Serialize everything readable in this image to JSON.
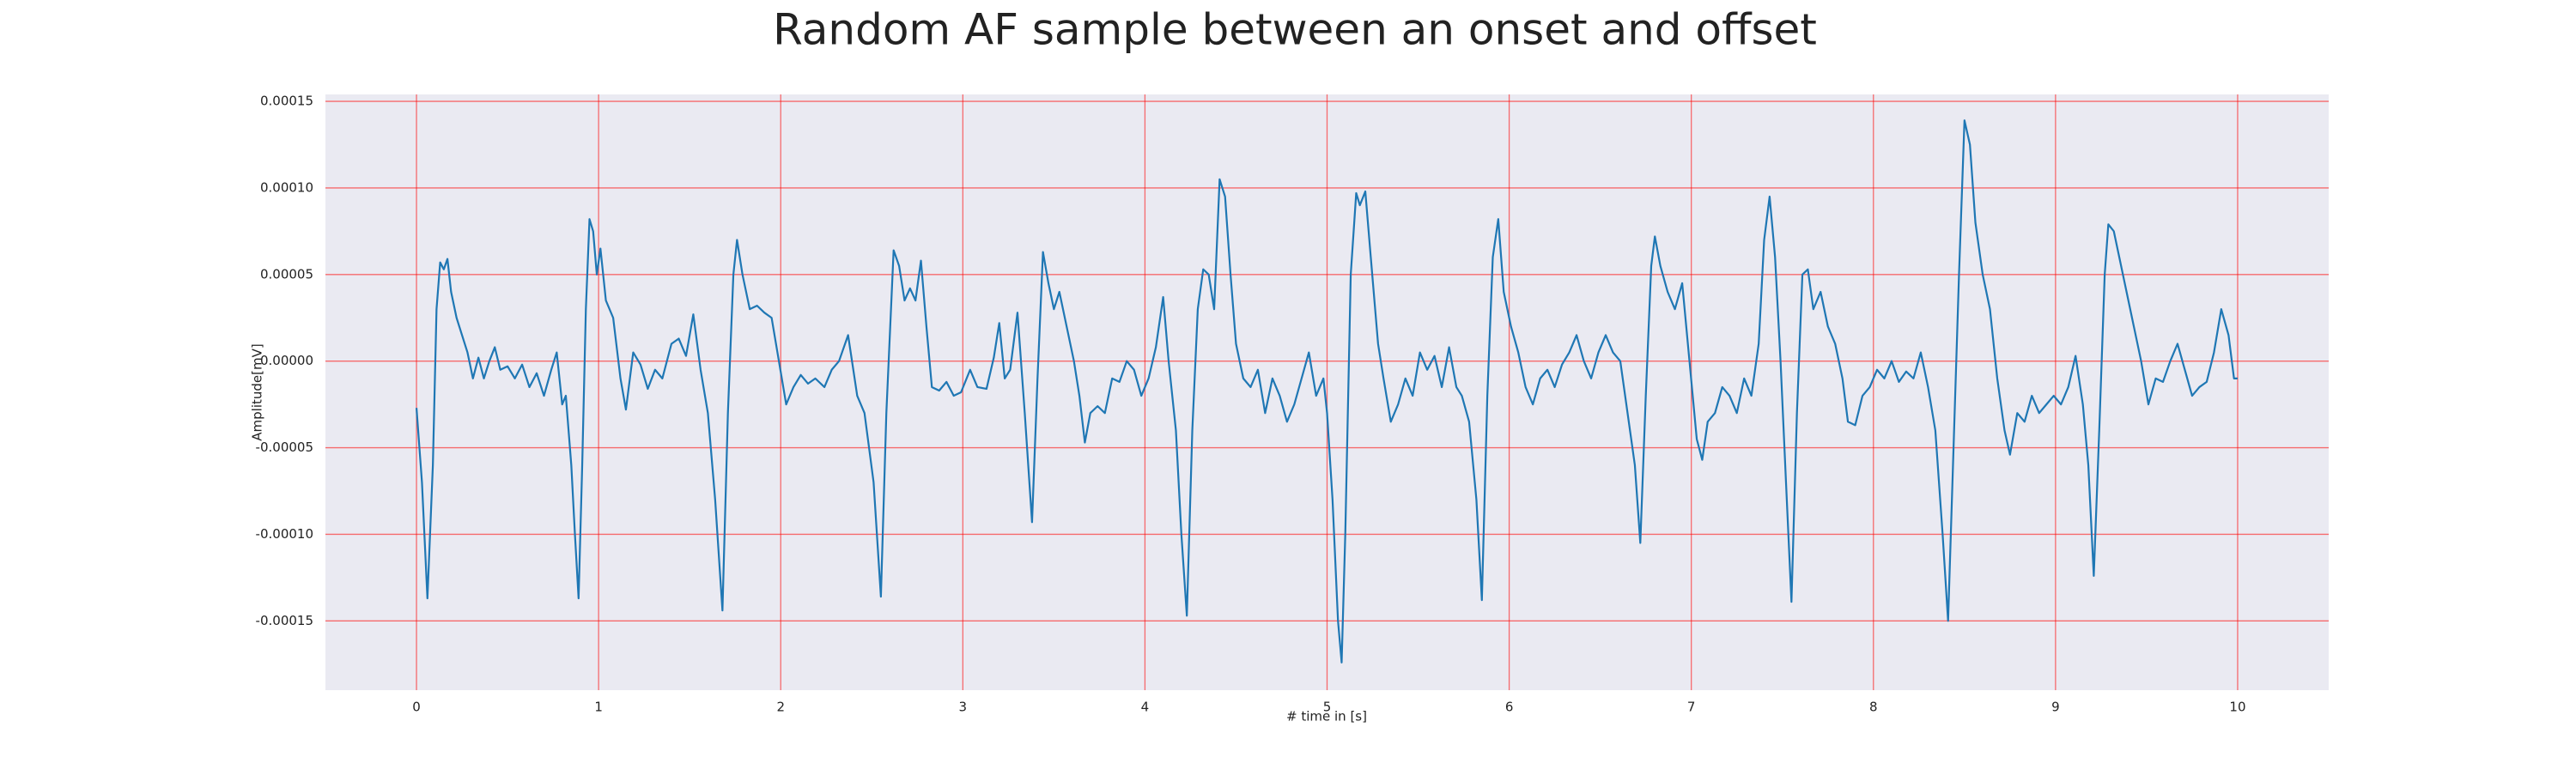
{
  "chart_data": {
    "type": "line",
    "title": "Random AF sample between an onset and offset",
    "xlabel": "# time in [s]",
    "ylabel": "Amplitude[mV]",
    "color": "#1f77b4",
    "grid": true,
    "xlim": [
      -0.5,
      10.5
    ],
    "xticks": [
      0,
      1,
      2,
      3,
      4,
      5,
      6,
      7,
      8,
      9,
      10
    ],
    "ylim": [
      -0.00019,
      0.000154
    ],
    "yticks": [
      {
        "value": -0.00015,
        "label": "-0.00015"
      },
      {
        "value": -0.0001,
        "label": "-0.00010"
      },
      {
        "value": -5e-05,
        "label": "-0.00005"
      },
      {
        "value": 0,
        "label": "0.00000"
      },
      {
        "value": 5e-05,
        "label": "0.00005"
      },
      {
        "value": 0.0001,
        "label": "0.00010"
      },
      {
        "value": 0.00015,
        "label": "0.00015"
      }
    ],
    "x": [
      0.0,
      0.03,
      0.06,
      0.09,
      0.11,
      0.13,
      0.15,
      0.17,
      0.19,
      0.22,
      0.25,
      0.28,
      0.31,
      0.34,
      0.37,
      0.4,
      0.43,
      0.46,
      0.5,
      0.54,
      0.58,
      0.62,
      0.66,
      0.7,
      0.74,
      0.77,
      0.8,
      0.82,
      0.85,
      0.87,
      0.89,
      0.91,
      0.93,
      0.95,
      0.97,
      0.99,
      1.01,
      1.04,
      1.08,
      1.12,
      1.15,
      1.19,
      1.23,
      1.27,
      1.31,
      1.35,
      1.4,
      1.44,
      1.48,
      1.52,
      1.56,
      1.6,
      1.64,
      1.68,
      1.71,
      1.74,
      1.76,
      1.79,
      1.83,
      1.87,
      1.91,
      1.95,
      1.99,
      2.03,
      2.07,
      2.11,
      2.15,
      2.19,
      2.24,
      2.28,
      2.32,
      2.37,
      2.42,
      2.46,
      2.51,
      2.55,
      2.58,
      2.62,
      2.65,
      2.68,
      2.71,
      2.74,
      2.77,
      2.8,
      2.83,
      2.87,
      2.91,
      2.95,
      2.99,
      3.04,
      3.08,
      3.13,
      3.17,
      3.2,
      3.23,
      3.26,
      3.3,
      3.34,
      3.38,
      3.41,
      3.44,
      3.47,
      3.5,
      3.53,
      3.57,
      3.61,
      3.64,
      3.67,
      3.7,
      3.74,
      3.78,
      3.82,
      3.86,
      3.9,
      3.94,
      3.98,
      4.02,
      4.06,
      4.1,
      4.13,
      4.17,
      4.2,
      4.23,
      4.26,
      4.29,
      4.32,
      4.35,
      4.38,
      4.41,
      4.44,
      4.47,
      4.5,
      4.54,
      4.58,
      4.62,
      4.66,
      4.7,
      4.74,
      4.78,
      4.82,
      4.86,
      4.9,
      4.94,
      4.98,
      5.0,
      5.03,
      5.06,
      5.08,
      5.1,
      5.13,
      5.16,
      5.18,
      5.21,
      5.24,
      5.28,
      5.31,
      5.35,
      5.39,
      5.43,
      5.47,
      5.51,
      5.55,
      5.59,
      5.63,
      5.67,
      5.71,
      5.74,
      5.78,
      5.82,
      5.85,
      5.88,
      5.91,
      5.94,
      5.97,
      6.01,
      6.05,
      6.09,
      6.13,
      6.17,
      6.21,
      6.25,
      6.29,
      6.33,
      6.37,
      6.41,
      6.45,
      6.49,
      6.53,
      6.57,
      6.61,
      6.65,
      6.69,
      6.72,
      6.75,
      6.78,
      6.8,
      6.83,
      6.87,
      6.91,
      6.95,
      6.99,
      7.03,
      7.06,
      7.09,
      7.13,
      7.17,
      7.21,
      7.25,
      7.29,
      7.33,
      7.37,
      7.4,
      7.43,
      7.46,
      7.49,
      7.52,
      7.55,
      7.58,
      7.61,
      7.64,
      7.67,
      7.71,
      7.75,
      7.79,
      7.83,
      7.86,
      7.9,
      7.94,
      7.98,
      8.02,
      8.06,
      8.1,
      8.14,
      8.18,
      8.22,
      8.26,
      8.3,
      8.34,
      8.38,
      8.41,
      8.44,
      8.47,
      8.5,
      8.53,
      8.56,
      8.6,
      8.64,
      8.68,
      8.72,
      8.75,
      8.79,
      8.83,
      8.87,
      8.91,
      8.95,
      8.99,
      9.03,
      9.07,
      9.11,
      9.15,
      9.18,
      9.21,
      9.24,
      9.27,
      9.29,
      9.32,
      9.35,
      9.39,
      9.43,
      9.47,
      9.51,
      9.55,
      9.59,
      9.63,
      9.67,
      9.71,
      9.75,
      9.79,
      9.83,
      9.87,
      9.91,
      9.95,
      9.98,
      10.0
    ],
    "values": [
      -2.7e-05,
      -7e-05,
      -0.000137,
      -6e-05,
      3e-05,
      5.7e-05,
      5.3e-05,
      5.9e-05,
      4e-05,
      2.5e-05,
      1.5e-05,
      5e-06,
      -1e-05,
      2e-06,
      -1e-05,
      0,
      8e-06,
      -5e-06,
      -3e-06,
      -1e-05,
      -2e-06,
      -1.5e-05,
      -7e-06,
      -2e-05,
      -5e-06,
      5e-06,
      -2.5e-05,
      -2e-05,
      -6e-05,
      -0.0001,
      -0.000137,
      -6e-05,
      3e-05,
      8.2e-05,
      7.5e-05,
      5e-05,
      6.5e-05,
      3.5e-05,
      2.5e-05,
      -1e-05,
      -2.8e-05,
      5e-06,
      -2e-06,
      -1.6e-05,
      -5e-06,
      -1e-05,
      1e-05,
      1.3e-05,
      3e-06,
      2.7e-05,
      -5e-06,
      -3e-05,
      -8e-05,
      -0.000144,
      -3e-05,
      5e-05,
      7e-05,
      5e-05,
      3e-05,
      3.2e-05,
      2.8e-05,
      2.5e-05,
      0,
      -2.5e-05,
      -1.5e-05,
      -8e-06,
      -1.3e-05,
      -1e-05,
      -1.5e-05,
      -5e-06,
      0,
      1.5e-05,
      -2e-05,
      -3e-05,
      -7e-05,
      -0.000136,
      -3e-05,
      6.4e-05,
      5.5e-05,
      3.5e-05,
      4.2e-05,
      3.5e-05,
      5.8e-05,
      2e-05,
      -1.5e-05,
      -1.7e-05,
      -1.2e-05,
      -2e-05,
      -1.8e-05,
      -5e-06,
      -1.5e-05,
      -1.6e-05,
      2e-06,
      2.2e-05,
      -1e-05,
      -5e-06,
      2.8e-05,
      -3e-05,
      -9.3e-05,
      -1e-05,
      6.3e-05,
      4.5e-05,
      3e-05,
      4e-05,
      2e-05,
      0,
      -2e-05,
      -4.7e-05,
      -3e-05,
      -2.6e-05,
      -3e-05,
      -1e-05,
      -1.2e-05,
      0,
      -5e-06,
      -2e-05,
      -1e-05,
      8e-06,
      3.7e-05,
      0,
      -4e-05,
      -0.0001,
      -0.000147,
      -4e-05,
      3e-05,
      5.3e-05,
      5e-05,
      3e-05,
      0.000105,
      9.5e-05,
      5e-05,
      1e-05,
      -1e-05,
      -1.5e-05,
      -5e-06,
      -3e-05,
      -1e-05,
      -2e-05,
      -3.5e-05,
      -2.5e-05,
      -1e-05,
      5e-06,
      -2e-05,
      -1e-05,
      -3e-05,
      -8e-05,
      -0.00015,
      -0.000174,
      -0.0001,
      5e-05,
      9.7e-05,
      9e-05,
      9.8e-05,
      6e-05,
      1e-05,
      -1e-05,
      -3.5e-05,
      -2.5e-05,
      -1e-05,
      -2e-05,
      5e-06,
      -5e-06,
      3e-06,
      -1.5e-05,
      8e-06,
      -1.5e-05,
      -2e-05,
      -3.5e-05,
      -8e-05,
      -0.000138,
      -2e-05,
      6e-05,
      8.2e-05,
      4e-05,
      2e-05,
      5e-06,
      -1.5e-05,
      -2.5e-05,
      -1e-05,
      -5e-06,
      -1.5e-05,
      -2e-06,
      5e-06,
      1.5e-05,
      0,
      -1e-05,
      5e-06,
      1.5e-05,
      5e-06,
      0,
      -3e-05,
      -6e-05,
      -0.000105,
      -2e-05,
      5.5e-05,
      7.2e-05,
      5.5e-05,
      4e-05,
      3e-05,
      4.5e-05,
      0,
      -4.5e-05,
      -5.7e-05,
      -3.5e-05,
      -3e-05,
      -1.5e-05,
      -2e-05,
      -3e-05,
      -1e-05,
      -2e-05,
      1e-05,
      7e-05,
      9.5e-05,
      6e-05,
      0,
      -7e-05,
      -0.000139,
      -3e-05,
      5e-05,
      5.3e-05,
      3e-05,
      4e-05,
      2e-05,
      1e-05,
      -1e-05,
      -3.5e-05,
      -3.7e-05,
      -2e-05,
      -1.5e-05,
      -5e-06,
      -1e-05,
      0,
      -1.2e-05,
      -6e-06,
      -1e-05,
      5e-06,
      -1.5e-05,
      -4e-05,
      -0.0001,
      -0.00015,
      -5e-05,
      5e-05,
      0.000139,
      0.000125,
      8e-05,
      5e-05,
      3e-05,
      -1e-05,
      -4e-05,
      -5.4e-05,
      -3e-05,
      -3.5e-05,
      -2e-05,
      -3e-05,
      -2.5e-05,
      -2e-05,
      -2.5e-05,
      -1.5e-05,
      3e-06,
      -2.5e-05,
      -6e-05,
      -0.000124,
      -4e-05,
      5e-05,
      7.9e-05,
      7.5e-05,
      6e-05,
      4e-05,
      2e-05,
      0,
      -2.5e-05,
      -1e-05,
      -1.2e-05,
      0,
      1e-05,
      -5e-06,
      -2e-05,
      -1.5e-05,
      -1.2e-05,
      5e-06,
      3e-05,
      1.5e-05,
      -1e-05,
      -1e-05
    ]
  }
}
